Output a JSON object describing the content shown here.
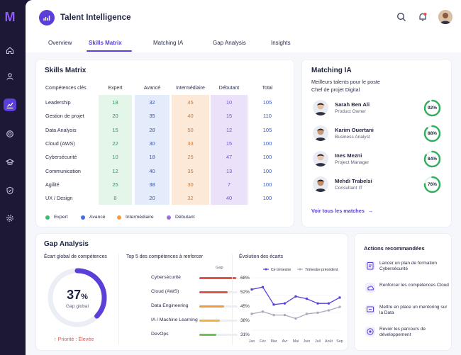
{
  "app": {
    "logo_letter": "M",
    "title": "Talent Intelligence"
  },
  "rail": [
    "home-icon",
    "users-icon",
    "chart-icon",
    "target-icon",
    "graduation-icon",
    "shield-icon",
    "settings-icon"
  ],
  "tabs": [
    {
      "label": "Overview",
      "active": false
    },
    {
      "label": "Skills Matrix",
      "active": true
    },
    {
      "label": "Matching IA",
      "active": false
    },
    {
      "label": "Gap Analysis",
      "active": false
    },
    {
      "label": "Insights",
      "active": false
    }
  ],
  "skills_matrix": {
    "title": "Skills Matrix",
    "headers": [
      "Compétences clés",
      "Expert",
      "Avancé",
      "Intermédiaire",
      "Débutant",
      "Total"
    ],
    "rows": [
      {
        "skill": "Leadership",
        "values": [
          "18",
          "32",
          "45",
          "10",
          "105"
        ]
      },
      {
        "skill": "Gestion de projet",
        "values": [
          "20",
          "35",
          "40",
          "15",
          "110"
        ]
      },
      {
        "skill": "Data Analysis",
        "values": [
          "15",
          "28",
          "50",
          "12",
          "105"
        ]
      },
      {
        "skill": "Cloud (AWS)",
        "values": [
          "22",
          "30",
          "33",
          "15",
          "100"
        ]
      },
      {
        "skill": "Cybersécurité",
        "values": [
          "10",
          "18",
          "25",
          "47",
          "100"
        ]
      },
      {
        "skill": "Communication",
        "values": [
          "12",
          "40",
          "35",
          "13",
          "100"
        ]
      },
      {
        "skill": "Agilité",
        "values": [
          "25",
          "38",
          "30",
          "7",
          "100"
        ]
      },
      {
        "skill": "UX / Design",
        "values": [
          "8",
          "20",
          "32",
          "40",
          "100"
        ]
      }
    ],
    "legend": [
      {
        "label": "Expert",
        "color": "#3dbb6e"
      },
      {
        "label": "Avancé",
        "color": "#3f6fe0"
      },
      {
        "label": "Intermédiaire",
        "color": "#f29a4a"
      },
      {
        "label": "Débutant",
        "color": "#9b6fe0"
      }
    ],
    "column_colors": [
      "#e4f5ea",
      "#e4ebfb",
      "#fde9d8",
      "#ebe2fa"
    ]
  },
  "matching": {
    "title": "Matching IA",
    "subtitle_1": "Meilleurs talents pour le poste",
    "subtitle_2": "Chef de projet Digital",
    "candidates": [
      {
        "name": "Sarah Ben Ali",
        "role": "Product Owner",
        "score": "92%",
        "score_value": 0.92
      },
      {
        "name": "Karim Ouertani",
        "role": "Business Analyst",
        "score": "88%",
        "score_value": 0.88
      },
      {
        "name": "Ines Mezni",
        "role": "Project Manager",
        "score": "84%",
        "score_value": 0.84
      },
      {
        "name": "Mehdi Trabelsi",
        "role": "Consultant IT",
        "score": "76%",
        "score_value": 0.76
      }
    ],
    "link": "Voir tous les matches"
  },
  "gap": {
    "title": "Gap Analysis",
    "global_label": "Écart global de compétences",
    "gauge_value": "37",
    "gauge_unit": "%",
    "gauge_fraction": 0.37,
    "gauge_caption": "Gap global",
    "priority": "Priorité : Élevée",
    "top5_title": "Top 5 des compétences à renforcer",
    "gap_col": "Gap",
    "top5": [
      {
        "label": "Cybersécurité",
        "pct": "68%",
        "value": 0.68,
        "color": "#e0524a"
      },
      {
        "label": "Cloud (AWS)",
        "pct": "52%",
        "value": 0.52,
        "color": "#e0524a"
      },
      {
        "label": "Data Engineering",
        "pct": "45%",
        "value": 0.45,
        "color": "#f29a3a"
      },
      {
        "label": "IA / Machine Learning",
        "pct": "38%",
        "value": 0.38,
        "color": "#f2b33a"
      },
      {
        "label": "DevOps",
        "pct": "31%",
        "value": 0.31,
        "color": "#6cc24a"
      }
    ]
  },
  "chart_data": {
    "type": "line",
    "title": "Évolution des écarts",
    "categories": [
      "Jan",
      "Fév",
      "Mar",
      "Avr",
      "Mai",
      "Juin",
      "Juil",
      "Août",
      "Sep"
    ],
    "series": [
      {
        "name": "Ce trimestre",
        "color": "#5b3fd8",
        "values": [
          45,
          47,
          32,
          33,
          39,
          37,
          33,
          33,
          38
        ]
      },
      {
        "name": "Trimestre précédent",
        "color": "#a9acbd",
        "values": [
          24,
          26,
          23,
          23,
          20,
          24,
          25,
          27,
          30
        ]
      }
    ],
    "ylim": [
      10,
      55
    ],
    "legend": "top"
  },
  "actions": {
    "title": "Actions recommandées",
    "items": [
      {
        "icon": "clipboard-icon",
        "text": "Lancer un plan de formation Cybersécurité"
      },
      {
        "icon": "cloud-icon",
        "text": "Renforcer les compétences Cloud"
      },
      {
        "icon": "mentor-icon",
        "text": "Mettre en place un mentoring sur la Data"
      },
      {
        "icon": "target-icon",
        "text": "Revoir les parcours de développement"
      }
    ]
  }
}
